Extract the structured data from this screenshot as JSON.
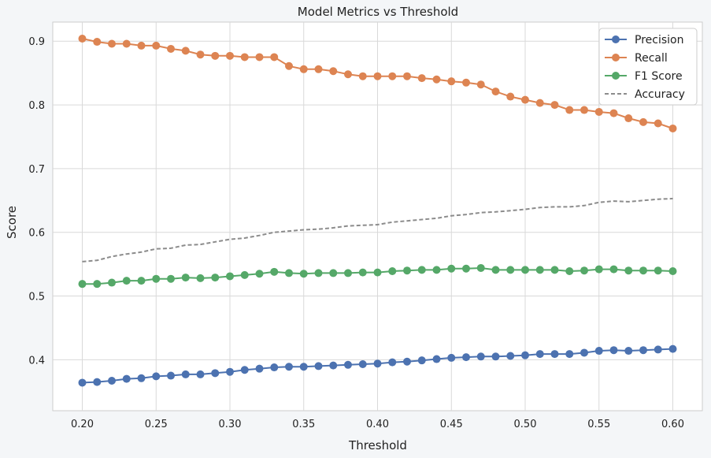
{
  "chart_data": {
    "type": "line",
    "title": "Model Metrics vs Threshold",
    "xlabel": "Threshold",
    "ylabel": "Score",
    "xlim": [
      0.18,
      0.62
    ],
    "ylim": [
      0.32,
      0.93
    ],
    "x_ticks": [
      0.2,
      0.25,
      0.3,
      0.35,
      0.4,
      0.45,
      0.5,
      0.55,
      0.6
    ],
    "x_tick_labels": [
      "0.20",
      "0.25",
      "0.30",
      "0.35",
      "0.40",
      "0.45",
      "0.50",
      "0.55",
      "0.60"
    ],
    "y_ticks": [
      0.4,
      0.5,
      0.6,
      0.7,
      0.8,
      0.9
    ],
    "y_tick_labels": [
      "0.4",
      "0.5",
      "0.6",
      "0.7",
      "0.8",
      "0.9"
    ],
    "grid": true,
    "legend_position": "top-right",
    "x": [
      0.2,
      0.21,
      0.22,
      0.23,
      0.24,
      0.25,
      0.26,
      0.27,
      0.28,
      0.29,
      0.3,
      0.31,
      0.32,
      0.33,
      0.34,
      0.35,
      0.36,
      0.37,
      0.38,
      0.39,
      0.4,
      0.41,
      0.42,
      0.43,
      0.44,
      0.45,
      0.46,
      0.47,
      0.48,
      0.49,
      0.5,
      0.51,
      0.52,
      0.53,
      0.54,
      0.55,
      0.56,
      0.57,
      0.58,
      0.59,
      0.6
    ],
    "series": [
      {
        "name": "Precision",
        "color": "#4c72b0",
        "style": "solid-marker",
        "values": [
          0.364,
          0.365,
          0.367,
          0.37,
          0.371,
          0.374,
          0.375,
          0.377,
          0.377,
          0.379,
          0.381,
          0.384,
          0.386,
          0.388,
          0.389,
          0.389,
          0.39,
          0.391,
          0.392,
          0.393,
          0.394,
          0.396,
          0.397,
          0.399,
          0.401,
          0.403,
          0.404,
          0.405,
          0.405,
          0.406,
          0.407,
          0.409,
          0.409,
          0.409,
          0.411,
          0.414,
          0.415,
          0.414,
          0.415,
          0.416,
          0.417
        ]
      },
      {
        "name": "Recall",
        "color": "#dd8452",
        "style": "solid-marker",
        "values": [
          0.904,
          0.899,
          0.896,
          0.896,
          0.893,
          0.893,
          0.888,
          0.885,
          0.879,
          0.877,
          0.877,
          0.875,
          0.875,
          0.875,
          0.861,
          0.856,
          0.856,
          0.853,
          0.848,
          0.845,
          0.845,
          0.845,
          0.845,
          0.842,
          0.84,
          0.837,
          0.835,
          0.832,
          0.821,
          0.813,
          0.808,
          0.803,
          0.8,
          0.792,
          0.792,
          0.789,
          0.787,
          0.779,
          0.773,
          0.771,
          0.763
        ]
      },
      {
        "name": "F1 Score",
        "color": "#55a868",
        "style": "solid-marker",
        "values": [
          0.519,
          0.519,
          0.521,
          0.524,
          0.524,
          0.527,
          0.527,
          0.529,
          0.528,
          0.529,
          0.531,
          0.533,
          0.535,
          0.538,
          0.536,
          0.535,
          0.536,
          0.536,
          0.536,
          0.537,
          0.537,
          0.539,
          0.54,
          0.541,
          0.541,
          0.543,
          0.543,
          0.544,
          0.541,
          0.541,
          0.541,
          0.541,
          0.541,
          0.539,
          0.54,
          0.542,
          0.542,
          0.54,
          0.54,
          0.54,
          0.539
        ]
      },
      {
        "name": "Accuracy",
        "color": "#8c8c8c",
        "style": "dashed",
        "values": [
          0.554,
          0.556,
          0.562,
          0.566,
          0.569,
          0.574,
          0.575,
          0.58,
          0.581,
          0.585,
          0.589,
          0.591,
          0.595,
          0.6,
          0.602,
          0.604,
          0.605,
          0.607,
          0.61,
          0.611,
          0.612,
          0.616,
          0.618,
          0.62,
          0.622,
          0.626,
          0.628,
          0.631,
          0.632,
          0.634,
          0.636,
          0.639,
          0.64,
          0.64,
          0.642,
          0.647,
          0.649,
          0.648,
          0.65,
          0.652,
          0.653
        ]
      }
    ]
  }
}
